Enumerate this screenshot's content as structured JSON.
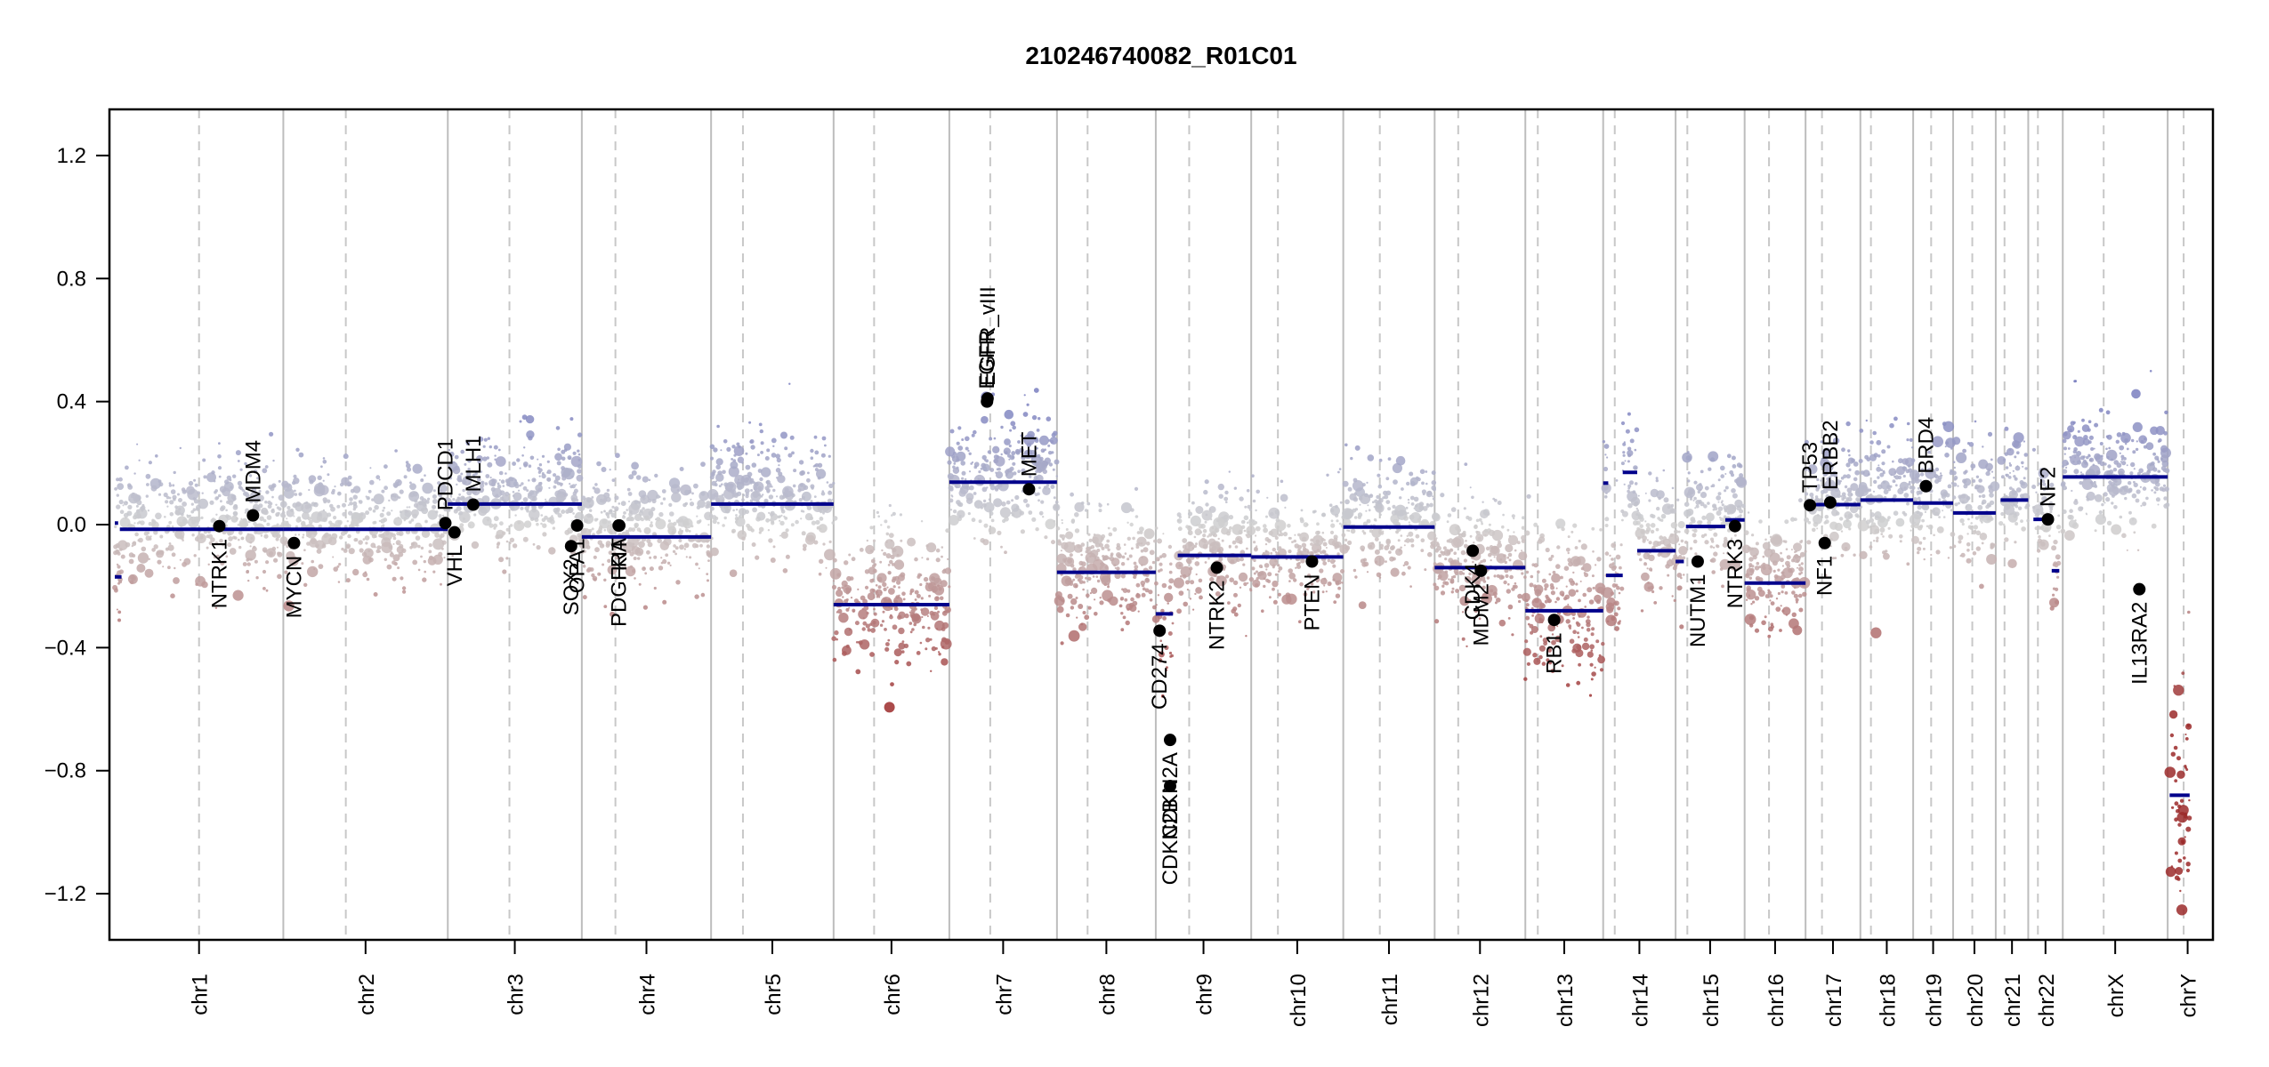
{
  "chart_data": {
    "type": "scatter",
    "title": "210246740082_R01C01",
    "xlabel": "",
    "ylabel": "",
    "ylim": [
      -1.35,
      1.35
    ],
    "yticks": [
      -1.2,
      -0.8,
      -0.4,
      0.0,
      0.4,
      0.8,
      1.2
    ],
    "ytick_labels": [
      "−1.2",
      "−0.8",
      "−0.4",
      "0.0",
      "0.4",
      "0.8",
      "1.2"
    ],
    "grid": "vertical chromosome boundaries (solid grey) and centromeres (dashed grey)",
    "colors": {
      "gain": "#7a7fc0",
      "neutral": "#d0d0d0",
      "loss": "#9b2a2a",
      "segment": "#00008b",
      "gene_point": "#000000",
      "boundary": "#bdbdbd",
      "centromere": "#c8c8c8"
    },
    "chromosomes": [
      {
        "name": "chr1",
        "label": "chr1",
        "size": 249,
        "centromere": 0.5
      },
      {
        "name": "chr2",
        "label": "chr2",
        "size": 243,
        "centromere": 0.38
      },
      {
        "name": "chr3",
        "label": "chr3",
        "size": 198,
        "centromere": 0.46
      },
      {
        "name": "chr4",
        "label": "chr4",
        "size": 191,
        "centromere": 0.26
      },
      {
        "name": "chr5",
        "label": "chr5",
        "size": 181,
        "centromere": 0.26
      },
      {
        "name": "chr6",
        "label": "chr6",
        "size": 171,
        "centromere": 0.35
      },
      {
        "name": "chr7",
        "label": "chr7",
        "size": 159,
        "centromere": 0.38
      },
      {
        "name": "chr8",
        "label": "chr8",
        "size": 146,
        "centromere": 0.31
      },
      {
        "name": "chr9",
        "label": "chr9",
        "size": 141,
        "centromere": 0.35
      },
      {
        "name": "chr10",
        "label": "chr10",
        "size": 136,
        "centromere": 0.29
      },
      {
        "name": "chr11",
        "label": "chr11",
        "size": 135,
        "centromere": 0.4
      },
      {
        "name": "chr12",
        "label": "chr12",
        "size": 134,
        "centromere": 0.26
      },
      {
        "name": "chr13",
        "label": "chr13",
        "size": 115,
        "centromere": 0.16
      },
      {
        "name": "chr14",
        "label": "chr14",
        "size": 107,
        "centromere": 0.16
      },
      {
        "name": "chr15",
        "label": "chr15",
        "size": 102,
        "centromere": 0.17
      },
      {
        "name": "chr16",
        "label": "chr16",
        "size": 90,
        "centromere": 0.4
      },
      {
        "name": "chr17",
        "label": "chr17",
        "size": 81,
        "centromere": 0.3
      },
      {
        "name": "chr18",
        "label": "chr18",
        "size": 78,
        "centromere": 0.2
      },
      {
        "name": "chr19",
        "label": "chr19",
        "size": 59,
        "centromere": 0.45
      },
      {
        "name": "chr20",
        "label": "chr20",
        "size": 63,
        "centromere": 0.45
      },
      {
        "name": "chr21",
        "label": "chr21",
        "size": 48,
        "centromere": 0.27
      },
      {
        "name": "chr22",
        "label": "chr22",
        "size": 51,
        "centromere": 0.28
      },
      {
        "name": "chrX",
        "label": "chrX",
        "size": 155,
        "centromere": 0.39
      },
      {
        "name": "chrY",
        "label": "chrY",
        "size": 59,
        "centromere": 0.4
      }
    ],
    "segments": [
      {
        "chr": "chr1",
        "start": 0.0,
        "end": 0.02,
        "value": 0.005
      },
      {
        "chr": "chr1",
        "start": 0.0,
        "end": 0.04,
        "value": -0.17
      },
      {
        "chr": "chr1",
        "start": 0.03,
        "end": 1.0,
        "value": -0.015
      },
      {
        "chr": "chr2",
        "start": 0.0,
        "end": 1.0,
        "value": -0.015
      },
      {
        "chr": "chr3",
        "start": 0.0,
        "end": 1.0,
        "value": 0.067
      },
      {
        "chr": "chr4",
        "start": 0.0,
        "end": 1.0,
        "value": -0.04
      },
      {
        "chr": "chr5",
        "start": 0.0,
        "end": 1.0,
        "value": 0.067
      },
      {
        "chr": "chr6",
        "start": 0.0,
        "end": 1.0,
        "value": -0.26
      },
      {
        "chr": "chr7",
        "start": 0.0,
        "end": 1.0,
        "value": 0.138
      },
      {
        "chr": "chr8",
        "start": 0.0,
        "end": 1.0,
        "value": -0.155
      },
      {
        "chr": "chr9",
        "start": 0.0,
        "end": 0.18,
        "value": -0.29
      },
      {
        "chr": "chr9",
        "start": 0.23,
        "end": 1.0,
        "value": -0.1
      },
      {
        "chr": "chr10",
        "start": 0.0,
        "end": 1.0,
        "value": -0.105
      },
      {
        "chr": "chr11",
        "start": 0.0,
        "end": 1.0,
        "value": -0.008
      },
      {
        "chr": "chr12",
        "start": 0.0,
        "end": 1.0,
        "value": -0.14
      },
      {
        "chr": "chr13",
        "start": 0.0,
        "end": 1.0,
        "value": -0.28
      },
      {
        "chr": "chr14",
        "start": 0.0,
        "end": 0.07,
        "value": 0.135
      },
      {
        "chr": "chr14",
        "start": 0.04,
        "end": 0.27,
        "value": -0.165
      },
      {
        "chr": "chr14",
        "start": 0.27,
        "end": 0.47,
        "value": 0.17
      },
      {
        "chr": "chr14",
        "start": 0.47,
        "end": 1.0,
        "value": -0.085
      },
      {
        "chr": "chr15",
        "start": 0.0,
        "end": 0.12,
        "value": -0.12
      },
      {
        "chr": "chr15",
        "start": 0.15,
        "end": 0.72,
        "value": -0.006
      },
      {
        "chr": "chr15",
        "start": 0.72,
        "end": 1.0,
        "value": 0.015
      },
      {
        "chr": "chr16",
        "start": 0.0,
        "end": 1.0,
        "value": -0.19
      },
      {
        "chr": "chr17",
        "start": 0.0,
        "end": 1.0,
        "value": 0.065
      },
      {
        "chr": "chr18",
        "start": 0.0,
        "end": 1.0,
        "value": 0.08
      },
      {
        "chr": "chr19",
        "start": 0.0,
        "end": 1.0,
        "value": 0.07
      },
      {
        "chr": "chr20",
        "start": 0.0,
        "end": 1.0,
        "value": 0.038
      },
      {
        "chr": "chr21",
        "start": 0.15,
        "end": 1.0,
        "value": 0.08
      },
      {
        "chr": "chr22",
        "start": 0.15,
        "end": 0.55,
        "value": 0.017
      },
      {
        "chr": "chr22",
        "start": 0.6,
        "end": 0.68,
        "value": 0.01
      },
      {
        "chr": "chr22",
        "start": 0.68,
        "end": 0.9,
        "value": -0.15
      },
      {
        "chr": "chrX",
        "start": 0.0,
        "end": 1.0,
        "value": 0.155
      },
      {
        "chr": "chrY",
        "start": 0.05,
        "end": 0.55,
        "value": -0.88
      }
    ],
    "genes": [
      {
        "name": "NTRK1",
        "chr": "chr1",
        "pos": 0.62,
        "value": -0.005,
        "label_side": "below"
      },
      {
        "name": "MDM4",
        "chr": "chr1",
        "pos": 0.82,
        "value": 0.03,
        "label_side": "above"
      },
      {
        "name": "MYCN",
        "chr": "chr2",
        "pos": 0.065,
        "value": -0.06,
        "label_side": "below"
      },
      {
        "name": "PDCD1",
        "chr": "chr2",
        "pos": 0.985,
        "value": 0.005,
        "label_side": "above"
      },
      {
        "name": "VHL",
        "chr": "chr3",
        "pos": 0.05,
        "value": -0.025,
        "label_side": "below"
      },
      {
        "name": "MLH1",
        "chr": "chr3",
        "pos": 0.19,
        "value": 0.065,
        "label_side": "above"
      },
      {
        "name": "SOX2",
        "chr": "chr3",
        "pos": 0.92,
        "value": -0.07,
        "label_side": "below"
      },
      {
        "name": "OPA1",
        "chr": "chr3",
        "pos": 0.965,
        "value": -0.003,
        "label_side": "below"
      },
      {
        "name": "PDGFRA",
        "chr": "chr4",
        "pos": 0.285,
        "value": -0.003,
        "label_side": "below"
      },
      {
        "name": "KIT",
        "chr": "chr4",
        "pos": 0.29,
        "value": -0.003,
        "label_side": "below"
      },
      {
        "name": "EGFR",
        "chr": "chr7",
        "pos": 0.35,
        "value": 0.4,
        "label_side": "above"
      },
      {
        "name": "EGFR_vIII",
        "chr": "chr7",
        "pos": 0.355,
        "value": 0.41,
        "label_side": "above"
      },
      {
        "name": "MET",
        "chr": "chr7",
        "pos": 0.74,
        "value": 0.115,
        "label_side": "above"
      },
      {
        "name": "CD274",
        "chr": "chr9",
        "pos": 0.04,
        "value": -0.345,
        "label_side": "below"
      },
      {
        "name": "CDKN2A",
        "chr": "chr9",
        "pos": 0.15,
        "value": -0.7,
        "label_side": "below"
      },
      {
        "name": "CDKN2B",
        "chr": "chr9",
        "pos": 0.15,
        "value": -0.85,
        "label_side": "below"
      },
      {
        "name": "NTRK2",
        "chr": "chr9",
        "pos": 0.64,
        "value": -0.14,
        "label_side": "below"
      },
      {
        "name": "PTEN",
        "chr": "chr10",
        "pos": 0.66,
        "value": -0.12,
        "label_side": "below"
      },
      {
        "name": "CDK4",
        "chr": "chr12",
        "pos": 0.42,
        "value": -0.085,
        "label_side": "below"
      },
      {
        "name": "MDM2",
        "chr": "chr12",
        "pos": 0.51,
        "value": -0.15,
        "label_side": "below"
      },
      {
        "name": "RB1",
        "chr": "chr13",
        "pos": 0.37,
        "value": -0.31,
        "label_side": "below"
      },
      {
        "name": "NUTM1",
        "chr": "chr15",
        "pos": 0.32,
        "value": -0.12,
        "label_side": "below"
      },
      {
        "name": "NTRK3",
        "chr": "chr15",
        "pos": 0.86,
        "value": -0.005,
        "label_side": "below"
      },
      {
        "name": "TP53",
        "chr": "chr17",
        "pos": 0.08,
        "value": 0.063,
        "label_side": "above"
      },
      {
        "name": "NF1",
        "chr": "chr17",
        "pos": 0.35,
        "value": -0.06,
        "label_side": "below"
      },
      {
        "name": "ERBB2",
        "chr": "chr17",
        "pos": 0.45,
        "value": 0.072,
        "label_side": "above"
      },
      {
        "name": "BRD4",
        "chr": "chr19",
        "pos": 0.32,
        "value": 0.125,
        "label_side": "above"
      },
      {
        "name": "NF2",
        "chr": "chr22",
        "pos": 0.57,
        "value": 0.017,
        "label_side": "above"
      },
      {
        "name": "IL13RA2",
        "chr": "chrX",
        "pos": 0.73,
        "value": -0.21,
        "label_side": "below"
      }
    ]
  }
}
